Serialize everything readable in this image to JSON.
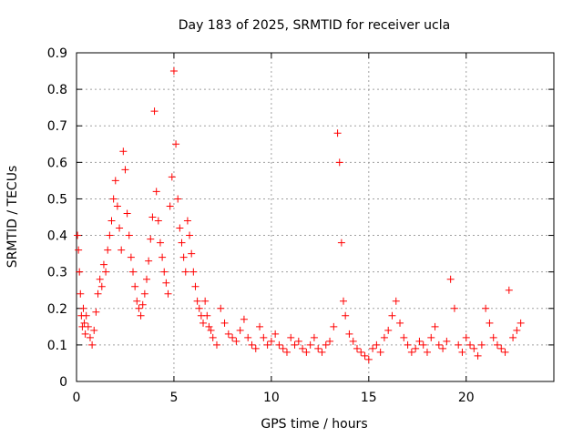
{
  "chart_data": {
    "type": "scatter",
    "title": "Day 183 of 2025, SRMTID for receiver ucla",
    "xlabel": "GPS time / hours",
    "ylabel": "SRMTID / TECUs",
    "xlim": [
      0,
      24.5
    ],
    "ylim": [
      0,
      0.9
    ],
    "xticks": [
      0,
      5,
      10,
      15,
      20
    ],
    "yticks": [
      0,
      0.1,
      0.2,
      0.3,
      0.4,
      0.5,
      0.6,
      0.7,
      0.8,
      0.9
    ],
    "grid": true,
    "marker": "+",
    "color": "#ff0000",
    "series": [
      {
        "name": "SRMTID",
        "x": [
          0.05,
          0.1,
          0.15,
          0.2,
          0.25,
          0.3,
          0.35,
          0.4,
          0.45,
          0.5,
          0.6,
          0.7,
          0.8,
          0.9,
          1.0,
          1.1,
          1.2,
          1.3,
          1.4,
          1.5,
          1.6,
          1.7,
          1.8,
          1.9,
          2.0,
          2.1,
          2.2,
          2.3,
          2.4,
          2.5,
          2.6,
          2.7,
          2.8,
          2.9,
          3.0,
          3.1,
          3.2,
          3.3,
          3.4,
          3.5,
          3.6,
          3.7,
          3.8,
          3.9,
          4.0,
          4.1,
          4.2,
          4.3,
          4.4,
          4.5,
          4.6,
          4.7,
          4.8,
          4.9,
          5.0,
          5.1,
          5.2,
          5.3,
          5.4,
          5.5,
          5.6,
          5.7,
          5.8,
          5.9,
          6.0,
          6.1,
          6.2,
          6.3,
          6.4,
          6.5,
          6.6,
          6.7,
          6.8,
          6.9,
          7.0,
          7.2,
          7.4,
          7.6,
          7.8,
          8.0,
          8.2,
          8.4,
          8.6,
          8.8,
          9.0,
          9.2,
          9.4,
          9.6,
          9.8,
          10.0,
          10.2,
          10.4,
          10.6,
          10.8,
          11.0,
          11.2,
          11.4,
          11.6,
          11.8,
          12.0,
          12.2,
          12.4,
          12.6,
          12.8,
          13.0,
          13.2,
          13.4,
          13.5,
          13.6,
          13.7,
          13.8,
          14.0,
          14.2,
          14.4,
          14.6,
          14.8,
          15.0,
          15.2,
          15.4,
          15.6,
          15.8,
          16.0,
          16.2,
          16.4,
          16.6,
          16.8,
          17.0,
          17.2,
          17.4,
          17.6,
          17.8,
          18.0,
          18.2,
          18.4,
          18.6,
          18.8,
          19.0,
          19.2,
          19.4,
          19.6,
          19.8,
          20.0,
          20.2,
          20.4,
          20.6,
          20.8,
          21.0,
          21.2,
          21.4,
          21.6,
          21.8,
          22.0,
          22.2,
          22.4,
          22.6,
          22.8
        ],
        "y": [
          0.4,
          0.36,
          0.3,
          0.24,
          0.18,
          0.15,
          0.2,
          0.16,
          0.13,
          0.18,
          0.15,
          0.12,
          0.1,
          0.14,
          0.19,
          0.24,
          0.28,
          0.26,
          0.32,
          0.3,
          0.36,
          0.4,
          0.44,
          0.5,
          0.55,
          0.48,
          0.42,
          0.36,
          0.63,
          0.58,
          0.46,
          0.4,
          0.34,
          0.3,
          0.26,
          0.22,
          0.2,
          0.18,
          0.21,
          0.24,
          0.28,
          0.33,
          0.39,
          0.45,
          0.74,
          0.52,
          0.44,
          0.38,
          0.34,
          0.3,
          0.27,
          0.24,
          0.48,
          0.56,
          0.85,
          0.65,
          0.5,
          0.42,
          0.38,
          0.34,
          0.3,
          0.44,
          0.4,
          0.35,
          0.3,
          0.26,
          0.22,
          0.2,
          0.18,
          0.16,
          0.22,
          0.18,
          0.15,
          0.14,
          0.12,
          0.1,
          0.2,
          0.16,
          0.13,
          0.12,
          0.11,
          0.14,
          0.17,
          0.12,
          0.1,
          0.09,
          0.15,
          0.12,
          0.1,
          0.11,
          0.13,
          0.1,
          0.09,
          0.08,
          0.12,
          0.1,
          0.11,
          0.09,
          0.08,
          0.1,
          0.12,
          0.09,
          0.08,
          0.1,
          0.11,
          0.15,
          0.68,
          0.6,
          0.38,
          0.22,
          0.18,
          0.13,
          0.11,
          0.09,
          0.08,
          0.07,
          0.06,
          0.09,
          0.1,
          0.08,
          0.12,
          0.14,
          0.18,
          0.22,
          0.16,
          0.12,
          0.1,
          0.08,
          0.09,
          0.11,
          0.1,
          0.08,
          0.12,
          0.15,
          0.1,
          0.09,
          0.11,
          0.28,
          0.2,
          0.1,
          0.08,
          0.12,
          0.1,
          0.09,
          0.07,
          0.1,
          0.2,
          0.16,
          0.12,
          0.1,
          0.09,
          0.08,
          0.25,
          0.12,
          0.14,
          0.16
        ]
      }
    ]
  }
}
